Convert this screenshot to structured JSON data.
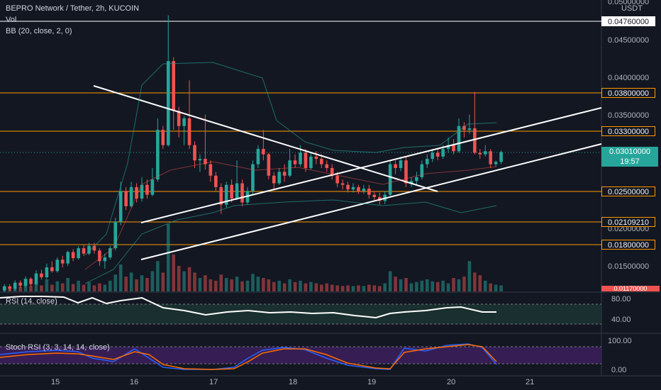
{
  "header": {
    "symbol_line": "BEPRO Network / Tether, 2h, KUCOIN",
    "vol_label": "Vol",
    "bb_label": "BB (20, close, 2, 0)"
  },
  "price_axis": {
    "currency": "USDT",
    "ticks": [
      "0.05000000",
      "0.04500000",
      "0.04000000",
      "0.03500000",
      "0.02000000",
      "0.01500000"
    ],
    "partial_bottom": "0.01170000"
  },
  "levels": [
    "0.04760000",
    "0.03800000",
    "0.03300000",
    "0.02500000",
    "0.02109210",
    "0.01800000"
  ],
  "current_price": {
    "value": "0.03010000",
    "countdown": "19:57"
  },
  "rsi": {
    "label": "RSI (14, close)",
    "ticks": [
      "80.00",
      "40.00"
    ]
  },
  "stoch": {
    "label": "Stoch RSI (3, 3, 14, 14, close)",
    "ticks": [
      "100.00",
      "0.00"
    ]
  },
  "time_axis": {
    "ticks": [
      "15",
      "16",
      "17",
      "18",
      "19",
      "20",
      "21"
    ]
  },
  "colors": {
    "up": "#26a69a",
    "down": "#ef5350",
    "level": "#ff9800",
    "background": "#131722",
    "rsi_band": "#1e3a34",
    "stoch_band": "#3b1f5a"
  }
}
